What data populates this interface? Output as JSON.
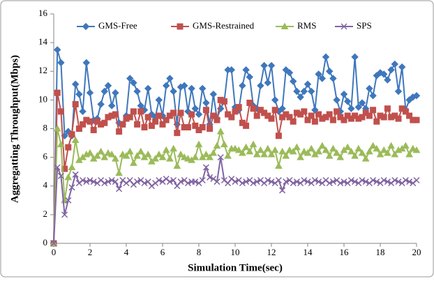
{
  "chart_data": {
    "type": "line",
    "x_label": "Simulation Time(sec)",
    "y_label": "Aggregatting Throughput(Mbps)",
    "x": [
      0,
      0.2,
      0.4,
      0.6,
      0.8,
      1,
      1.2,
      1.4,
      1.6,
      1.8,
      2,
      2.2,
      2.4,
      2.6,
      2.8,
      3,
      3.2,
      3.4,
      3.6,
      3.8,
      4,
      4.2,
      4.4,
      4.6,
      4.8,
      5,
      5.2,
      5.4,
      5.6,
      5.8,
      6,
      6.2,
      6.4,
      6.6,
      6.8,
      7,
      7.2,
      7.4,
      7.6,
      7.8,
      8,
      8.2,
      8.4,
      8.6,
      8.8,
      9,
      9.2,
      9.4,
      9.6,
      9.8,
      10,
      10.2,
      10.4,
      10.6,
      10.8,
      11,
      11.2,
      11.4,
      11.6,
      11.8,
      12,
      12.2,
      12.4,
      12.6,
      12.8,
      13,
      13.2,
      13.4,
      13.6,
      13.8,
      14,
      14.2,
      14.4,
      14.6,
      14.8,
      15,
      15.2,
      15.4,
      15.6,
      15.8,
      16,
      16.2,
      16.4,
      16.6,
      16.8,
      17,
      17.2,
      17.4,
      17.6,
      17.8,
      18,
      18.2,
      18.4,
      18.6,
      18.8,
      19,
      19.2,
      19.4,
      19.6,
      19.8,
      20
    ],
    "series": [
      {
        "name": "GMS-Free",
        "color": "#3f77bc",
        "marker": "diamond",
        "values": [
          0,
          13.5,
          12.6,
          7.5,
          7.8,
          7.5,
          11.1,
          10.4,
          9.2,
          12.6,
          10.5,
          8.6,
          8.7,
          9.7,
          10.6,
          11.0,
          9.6,
          10.5,
          8.4,
          8.3,
          8.9,
          11.5,
          11.2,
          10.6,
          9.6,
          9.3,
          10.8,
          9.0,
          8.8,
          10.0,
          8.9,
          11.0,
          11.5,
          10.6,
          8.3,
          10.9,
          11.0,
          9.2,
          10.8,
          9.4,
          9.0,
          10.8,
          9.8,
          8.3,
          10.4,
          8.7,
          9.4,
          9.9,
          12.1,
          12.1,
          9.5,
          9.3,
          11.0,
          12.1,
          11.6,
          9.6,
          9.4,
          11.0,
          12.4,
          11.2,
          12.4,
          10.0,
          9.2,
          9.4,
          12.1,
          11.9,
          11.3,
          10.6,
          10.2,
          10.6,
          11.1,
          10.6,
          9.3,
          11.8,
          11.5,
          13.0,
          12.0,
          11.5,
          10.0,
          9.2,
          10.4,
          9.9,
          9.4,
          13.0,
          9.5,
          9.8,
          9.4,
          10.8,
          10.3,
          11.7,
          11.9,
          11.8,
          11.4,
          12.1,
          12.5,
          10.6,
          12.3,
          9.3,
          10.0,
          10.2,
          10.3
        ]
      },
      {
        "name": "GMS-Restrained",
        "color": "#c0504d",
        "marker": "square",
        "values": [
          0,
          10.5,
          9.2,
          5.2,
          6.7,
          7.6,
          9.7,
          8.0,
          8.3,
          8.6,
          8.5,
          7.9,
          8.5,
          8.3,
          8.4,
          8.8,
          8.9,
          9.0,
          7.8,
          8.3,
          8.7,
          8.8,
          9.2,
          8.3,
          9.2,
          8.1,
          8.8,
          8.2,
          8.5,
          8.9,
          8.3,
          8.6,
          8.9,
          9.1,
          7.7,
          9.1,
          8.1,
          8.1,
          9.0,
          8.2,
          7.9,
          8.1,
          9.3,
          8.0,
          8.9,
          8.6,
          10.0,
          9.9,
          9.0,
          8.8,
          9.2,
          9.5,
          8.4,
          8.2,
          9.8,
          9.4,
          8.9,
          9.3,
          9.1,
          8.9,
          8.7,
          9.3,
          7.5,
          8.8,
          9.0,
          8.8,
          8.5,
          9.1,
          9.0,
          9.2,
          8.6,
          8.9,
          8.5,
          9.0,
          8.7,
          8.8,
          9.0,
          8.6,
          9.2,
          8.8,
          8.6,
          8.9,
          8.7,
          8.9,
          8.7,
          8.8,
          9.1,
          8.9,
          9.3,
          8.5,
          8.9,
          8.8,
          9.4,
          8.8,
          8.9,
          8.7,
          9.4,
          9.2,
          8.9,
          8.6,
          8.6
        ]
      },
      {
        "name": "RMS",
        "color": "#9bbb59",
        "marker": "triangle",
        "values": [
          0,
          8.0,
          6.9,
          3.0,
          4.6,
          5.3,
          7.2,
          5.8,
          6.0,
          6.2,
          6.3,
          5.9,
          6.1,
          6.4,
          6.0,
          6.3,
          6.2,
          5.9,
          4.9,
          6.2,
          6.1,
          6.4,
          5.6,
          6.1,
          6.4,
          6.0,
          6.2,
          5.7,
          5.9,
          6.2,
          6.0,
          6.5,
          5.9,
          6.6,
          5.4,
          6.2,
          6.0,
          5.9,
          5.8,
          6.0,
          6.9,
          6.0,
          6.2,
          6.0,
          6.3,
          6.8,
          7.8,
          6.9,
          6.1,
          6.6,
          6.6,
          6.5,
          6.3,
          6.7,
          6.4,
          6.9,
          6.2,
          6.5,
          6.2,
          6.6,
          6.2,
          6.5,
          5.4,
          6.4,
          6.1,
          6.5,
          6.4,
          6.7,
          6.0,
          6.4,
          6.3,
          6.6,
          6.2,
          6.4,
          6.8,
          6.5,
          6.1,
          6.6,
          6.3,
          6.0,
          6.5,
          6.7,
          6.4,
          6.1,
          6.6,
          6.3,
          5.9,
          6.4,
          6.8,
          6.6,
          6.2,
          6.5,
          6.3,
          6.8,
          6.2,
          6.5,
          6.6,
          6.8,
          6.2,
          6.6,
          6.5
        ]
      },
      {
        "name": "SPS",
        "color": "#8064a2",
        "marker": "x",
        "values": [
          0,
          5.3,
          4.7,
          2.0,
          3.0,
          3.9,
          4.8,
          4.2,
          4.4,
          4.3,
          4.4,
          4.3,
          4.2,
          4.4,
          4.2,
          4.3,
          4.4,
          4.3,
          3.8,
          4.4,
          4.2,
          4.4,
          4.1,
          4.3,
          4.4,
          4.2,
          4.3,
          4.0,
          4.2,
          4.4,
          4.3,
          4.5,
          4.3,
          4.4,
          4.0,
          4.3,
          4.4,
          4.2,
          4.3,
          4.3,
          4.2,
          4.4,
          5.3,
          4.6,
          4.5,
          4.3,
          6.0,
          4.4,
          4.2,
          4.5,
          4.3,
          4.4,
          4.2,
          4.3,
          4.4,
          4.2,
          4.3,
          4.4,
          4.2,
          4.4,
          4.3,
          4.2,
          4.4,
          3.7,
          4.3,
          4.4,
          4.2,
          4.3,
          4.2,
          4.4,
          4.3,
          4.2,
          4.4,
          4.3,
          4.2,
          4.4,
          4.2,
          4.3,
          4.4,
          4.2,
          4.3,
          4.2,
          4.4,
          4.3,
          4.2,
          4.4,
          4.3,
          4.2,
          4.4,
          4.3,
          4.2,
          4.4,
          4.3,
          4.2,
          4.4,
          4.3,
          4.2,
          4.4,
          4.3,
          4.2,
          4.4
        ]
      }
    ],
    "xlim": [
      0,
      20
    ],
    "xticks": [
      0,
      2,
      4,
      6,
      8,
      10,
      12,
      14,
      16,
      18,
      20
    ],
    "ylim": [
      0,
      16
    ],
    "yticks": [
      0,
      2,
      4,
      6,
      8,
      10,
      12,
      14,
      16
    ],
    "legend": "top"
  }
}
